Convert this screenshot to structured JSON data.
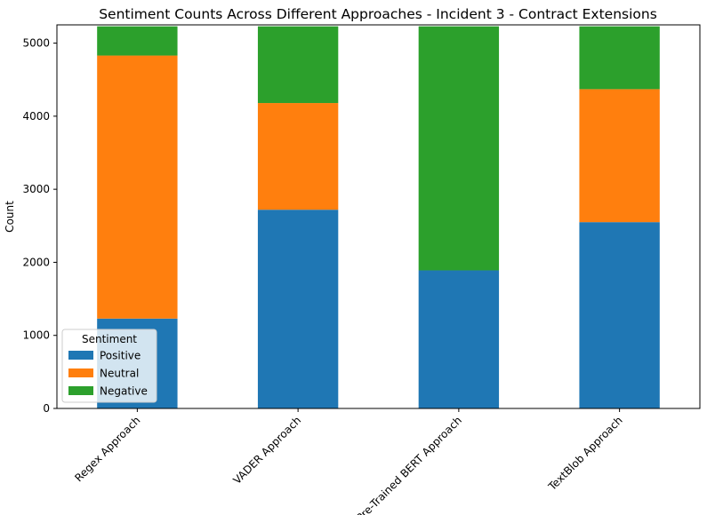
{
  "chart_data": {
    "type": "bar",
    "stacked": true,
    "title": "Sentiment Counts Across Different Approaches - Incident 3 - Contract Extensions",
    "xlabel": "",
    "ylabel": "Count",
    "ylim": [
      0,
      5250
    ],
    "yticks": [
      0,
      1000,
      2000,
      3000,
      4000,
      5000
    ],
    "grid": false,
    "categories": [
      "Regex Approach",
      "VADER Approach",
      "Pre-Trained BERT Approach",
      "TextBlob Approach"
    ],
    "series": [
      {
        "name": "Positive",
        "color": "#1f77b4",
        "values": [
          1230,
          2720,
          1890,
          2550
        ]
      },
      {
        "name": "Neutral",
        "color": "#ff7f0e",
        "values": [
          3600,
          1460,
          0,
          1820
        ]
      },
      {
        "name": "Negative",
        "color": "#2ca02c",
        "values": [
          400,
          1050,
          3340,
          860
        ]
      }
    ],
    "legend": {
      "title": "Sentiment",
      "placement": "lower-left"
    }
  }
}
